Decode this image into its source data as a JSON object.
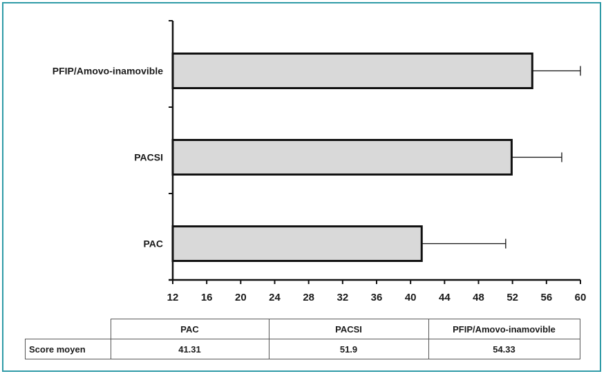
{
  "chart_data": {
    "type": "bar",
    "orientation": "horizontal",
    "categories": [
      "PFIP/Amovo-inamovible",
      "PACSI",
      "PAC"
    ],
    "values": [
      54.33,
      51.9,
      41.31
    ],
    "error_upper": [
      60,
      57.8,
      51.2
    ],
    "xlim": [
      12,
      60
    ],
    "xticks": [
      "12",
      "16",
      "20",
      "24",
      "28",
      "32",
      "36",
      "40",
      "44",
      "48",
      "52",
      "56",
      "60"
    ],
    "bar_color": "#d9d9d9",
    "title": "",
    "xlabel": "",
    "ylabel": ""
  },
  "table": {
    "columns": [
      "PAC",
      "PACSI",
      "PFIP/Amovo-inamovible"
    ],
    "row_label": "Score moyen",
    "values": [
      "41.31",
      "51.9",
      "54.33"
    ]
  },
  "frame_color": "#2e9aa6"
}
